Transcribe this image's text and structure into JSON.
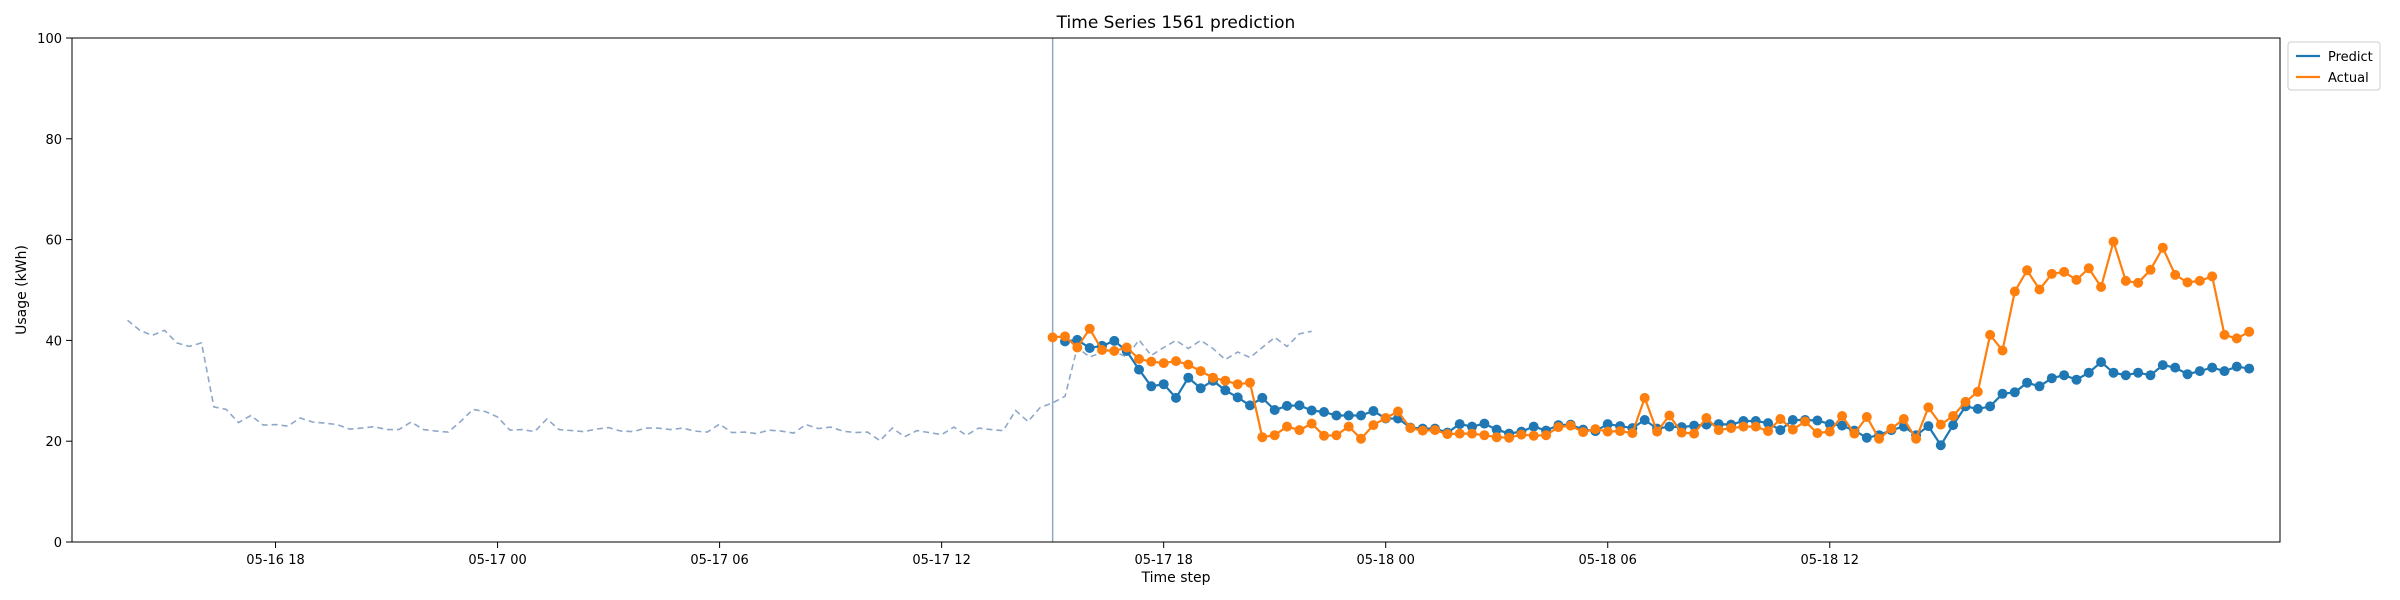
{
  "chart_data": {
    "type": "line",
    "title": "Time Series 1561 prediction",
    "xlabel": "Time step",
    "ylabel": "Usage (kWh)",
    "ylim": [
      0,
      100
    ],
    "yticks": [
      0,
      20,
      40,
      60,
      80,
      100
    ],
    "xlim": [
      "2024-05-16 12:30",
      "2024-05-19 00:10"
    ],
    "xticks": [
      {
        "value": "2024-05-16 18:00",
        "label": "05-16 18"
      },
      {
        "value": "2024-05-17 00:00",
        "label": "05-17 00"
      },
      {
        "value": "2024-05-17 06:00",
        "label": "05-17 06"
      },
      {
        "value": "2024-05-17 12:00",
        "label": "05-17 12"
      },
      {
        "value": "2024-05-17 18:00",
        "label": "05-17 18"
      },
      {
        "value": "2024-05-18 00:00",
        "label": "05-18 00"
      },
      {
        "value": "2024-05-18 06:00",
        "label": "05-18 06"
      },
      {
        "value": "2024-05-18 12:00",
        "label": "05-18 12"
      }
    ],
    "grid": false,
    "legend_position": "outside-top-right",
    "forecast_start": "2024-05-17 15:00",
    "history": {
      "start": "2024-05-16 14:00",
      "step_minutes": 20,
      "color": "#8fa8c8",
      "style": "dashed",
      "values": [
        44.0,
        42.0,
        41.0,
        42.0,
        39.5,
        38.8,
        39.5,
        26.8,
        26.3,
        23.7,
        25.1,
        23.2,
        23.3,
        23.0,
        24.6,
        23.8,
        23.6,
        23.3,
        22.4,
        22.6,
        22.9,
        22.3,
        22.3,
        23.8,
        22.3,
        22.0,
        21.8,
        23.9,
        26.3,
        25.9,
        24.8,
        22.2,
        22.3,
        21.9,
        24.4,
        22.3,
        22.1,
        21.9,
        22.4,
        22.7,
        22.0,
        21.9,
        22.6,
        22.6,
        22.3,
        22.6,
        22.0,
        21.8,
        23.4,
        21.7,
        21.8,
        21.5,
        22.2,
        22.0,
        21.6,
        23.3,
        22.5,
        22.8,
        22.0,
        21.7,
        21.8,
        20.1,
        22.6,
        20.9,
        22.1,
        21.7,
        21.3,
        22.8,
        21.2,
        22.6,
        22.3,
        22.1,
        26.1,
        23.9,
        26.7,
        27.6,
        28.9,
        38.6,
        36.7,
        37.6,
        37.8,
        36.7,
        40.1,
        37.0,
        38.6,
        40.0,
        38.4,
        40.0,
        38.4,
        36.2,
        37.7,
        36.6,
        38.6,
        40.6,
        38.8,
        41.3,
        41.8
      ]
    },
    "series": [
      {
        "name": "Predict",
        "color": "#1f77b4",
        "start": "2024-05-17 15:20",
        "step_minutes": 20,
        "values": [
          39.8,
          40.1,
          38.5,
          38.9,
          39.9,
          37.9,
          34.2,
          30.9,
          31.3,
          28.6,
          32.6,
          30.5,
          32.0,
          30.1,
          28.7,
          27.1,
          28.6,
          26.2,
          27.0,
          27.1,
          26.1,
          25.8,
          25.1,
          25.1,
          25.1,
          26.0,
          24.5,
          24.5,
          22.7,
          22.5,
          22.5,
          21.7,
          23.4,
          22.9,
          23.5,
          22.3,
          21.5,
          21.9,
          22.9,
          22.1,
          23.2,
          23.3,
          22.3,
          22.0,
          23.4,
          23.0,
          22.6,
          24.2,
          22.5,
          22.9,
          22.8,
          23.1,
          23.3,
          23.4,
          23.3,
          24.0,
          24.0,
          23.6,
          22.2,
          24.2,
          24.2,
          24.1,
          23.4,
          23.1,
          22.1,
          20.7,
          21.2,
          22.2,
          22.9,
          21.2,
          23.0,
          19.2,
          23.2,
          26.9,
          26.4,
          26.9,
          29.4,
          29.7,
          31.6,
          30.9,
          32.5,
          33.1,
          32.2,
          33.6,
          35.7,
          33.6,
          33.1,
          33.6,
          33.1,
          35.1,
          34.6,
          33.3,
          33.9,
          34.6,
          33.9,
          34.8,
          34.4
        ]
      },
      {
        "name": "Actual",
        "color": "#ff7f0e",
        "start": "2024-05-17 15:00",
        "step_minutes": 20,
        "values": [
          40.6,
          40.8,
          38.6,
          42.3,
          38.1,
          37.9,
          38.6,
          36.3,
          35.8,
          35.5,
          35.9,
          35.2,
          33.9,
          32.6,
          32.0,
          31.3,
          31.6,
          20.8,
          21.2,
          22.9,
          22.2,
          23.5,
          21.1,
          21.2,
          22.9,
          20.5,
          23.2,
          24.6,
          25.9,
          22.6,
          22.1,
          22.2,
          21.4,
          21.5,
          21.5,
          21.2,
          20.8,
          20.7,
          21.3,
          21.1,
          21.2,
          22.8,
          23.1,
          21.8,
          22.4,
          21.9,
          22.0,
          21.6,
          28.6,
          21.9,
          25.1,
          21.7,
          21.5,
          24.6,
          22.2,
          22.6,
          22.9,
          22.9,
          22.0,
          24.4,
          22.3,
          23.9,
          21.6,
          21.9,
          25.0,
          21.5,
          24.8,
          20.5,
          22.5,
          24.4,
          20.5,
          26.7,
          23.3,
          25.0,
          27.8,
          29.8,
          41.1,
          38.0,
          49.7,
          53.9,
          50.1,
          53.2,
          53.6,
          52.0,
          54.3,
          50.6,
          59.6,
          51.8,
          51.4,
          54.0,
          58.4,
          53.0,
          51.5,
          51.8,
          52.7,
          41.1,
          40.4,
          41.7
        ]
      }
    ]
  }
}
